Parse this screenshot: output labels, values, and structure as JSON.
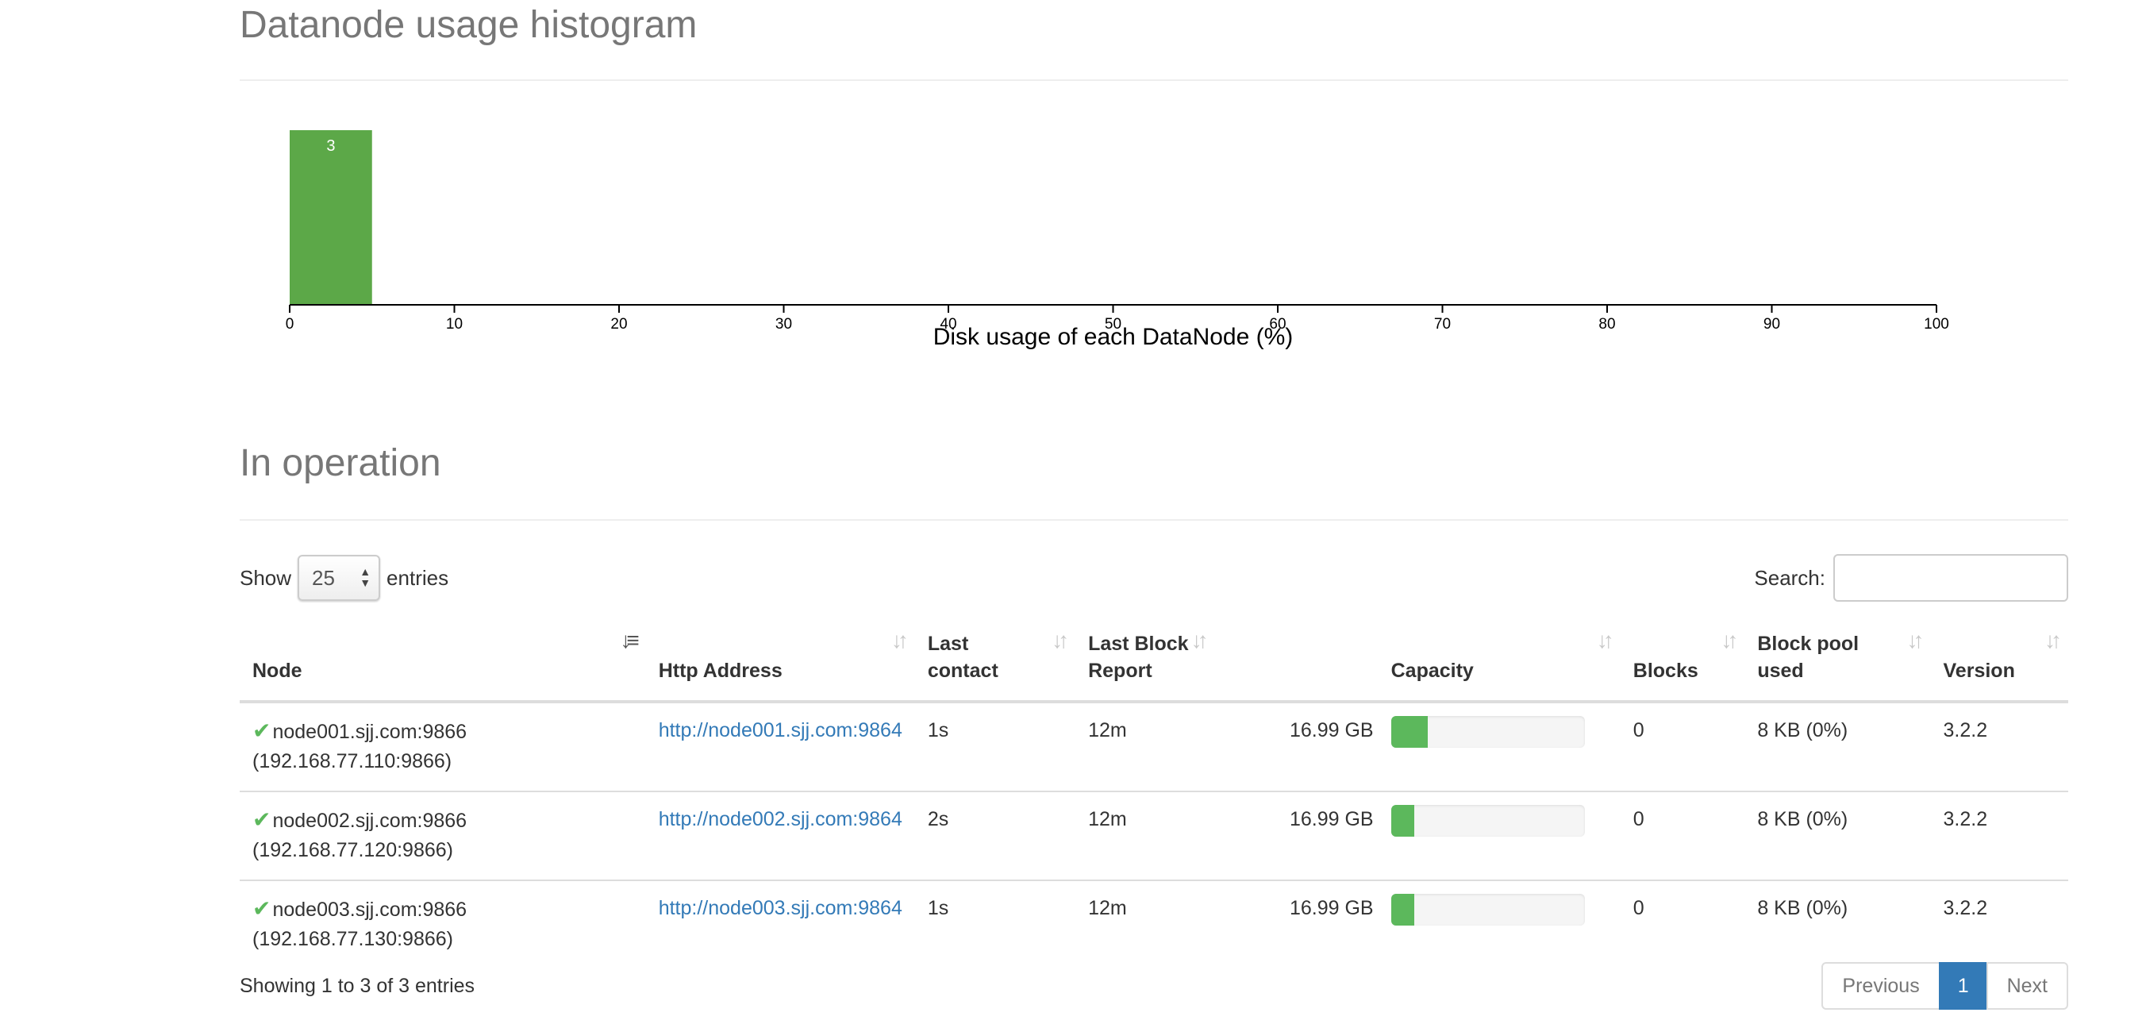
{
  "histogram": {
    "title": "Datanode usage histogram"
  },
  "chart_data": {
    "type": "bar",
    "title": "Datanode usage histogram",
    "xlabel": "Disk usage of each DataNode (%)",
    "ylabel": "",
    "xlim": [
      0,
      100
    ],
    "x_ticks": [
      "0",
      "10",
      "20",
      "30",
      "40",
      "50",
      "60",
      "70",
      "80",
      "90",
      "100"
    ],
    "bins": [
      {
        "x0": 0,
        "x1": 5,
        "count": 3,
        "label": "3"
      }
    ],
    "bar_color": "#5ca848"
  },
  "operation": {
    "title": "In operation",
    "show_label": "Show",
    "page_length": "25",
    "entries_label": "entries",
    "search_label": "Search:",
    "search_value": "",
    "columns": [
      "Node",
      "Http Address",
      "Last contact",
      "Last Block Report",
      "Capacity",
      "Blocks",
      "Block pool used",
      "Version"
    ],
    "rows": [
      {
        "node": "node001.sjj.com:9866",
        "ip": "(192.168.77.110:9866)",
        "http": "http://node001.sjj.com:9864",
        "last_contact": "1s",
        "last_block_report": "12m",
        "capacity": "16.99 GB",
        "used_fraction": 0.19,
        "blocks": "0",
        "block_pool_used": "8 KB (0%)",
        "version": "3.2.2"
      },
      {
        "node": "node002.sjj.com:9866",
        "ip": "(192.168.77.120:9866)",
        "http": "http://node002.sjj.com:9864",
        "last_contact": "2s",
        "last_block_report": "12m",
        "capacity": "16.99 GB",
        "used_fraction": 0.12,
        "blocks": "0",
        "block_pool_used": "8 KB (0%)",
        "version": "3.2.2"
      },
      {
        "node": "node003.sjj.com:9866",
        "ip": "(192.168.77.130:9866)",
        "http": "http://node003.sjj.com:9864",
        "last_contact": "1s",
        "last_block_report": "12m",
        "capacity": "16.99 GB",
        "used_fraction": 0.12,
        "blocks": "0",
        "block_pool_used": "8 KB (0%)",
        "version": "3.2.2"
      }
    ],
    "info": "Showing 1 to 3 of 3 entries",
    "pagination": {
      "previous": "Previous",
      "current": "1",
      "next": "Next"
    }
  },
  "colors": {
    "ok": "#5cb85c",
    "link": "#337ab7",
    "active_page": "#337ab7"
  }
}
